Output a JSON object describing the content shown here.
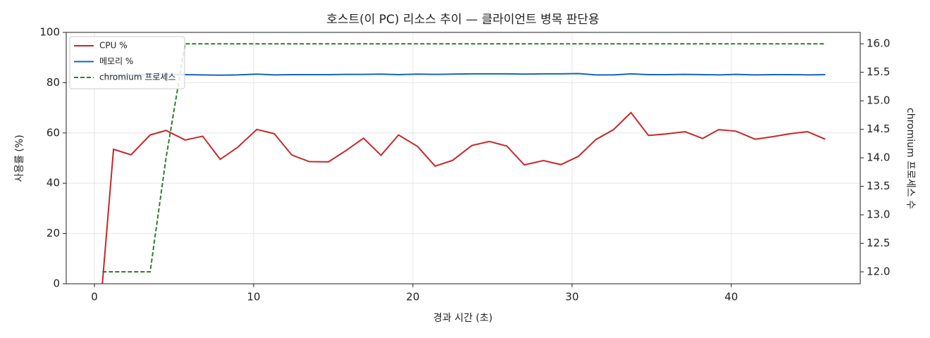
{
  "chart_data": {
    "type": "line",
    "title": "호스트(이 PC) 리소스 추이 — 클라이언트 병목 판단용",
    "x_label": "경과 시간 (초)",
    "y_label": "사용률 (%)",
    "y2_label": "chromium 프로세스 수",
    "x": [
      0.5,
      1.2,
      2.3,
      3.5,
      4.5,
      5.7,
      6.8,
      7.9,
      9.0,
      10.2,
      11.3,
      12.4,
      13.5,
      14.7,
      15.8,
      16.9,
      18.0,
      19.1,
      20.3,
      21.4,
      22.5,
      23.7,
      24.8,
      25.9,
      27.0,
      28.2,
      29.3,
      30.4,
      31.5,
      32.6,
      33.7,
      34.8,
      35.9,
      37.1,
      38.2,
      39.2,
      40.3,
      41.5,
      42.6,
      43.7,
      44.8,
      45.9
    ],
    "series": [
      {
        "name": "CPU %",
        "color": "#c62828",
        "linestyle": "solid",
        "axis": "y",
        "values": [
          0,
          53.5,
          51.3,
          59.2,
          61,
          57.2,
          58.7,
          49.5,
          54.3,
          61.4,
          59.7,
          51.2,
          48.6,
          48.5,
          53,
          57.9,
          51.1,
          59.2,
          54.6,
          46.8,
          49.1,
          55,
          56.6,
          54.8,
          47.3,
          49,
          47.4,
          50.7,
          57.4,
          61.3,
          68.1,
          59,
          59.6,
          60.5,
          57.8,
          61.3,
          60.7,
          57.5,
          58.5,
          59.7,
          60.5,
          57.5
        ]
      },
      {
        "name": "메모리 %",
        "color": "#1565c0",
        "linestyle": "solid",
        "axis": "y",
        "values": [
          82.9,
          83.0,
          83.1,
          83.2,
          83.3,
          83.2,
          83.1,
          83.0,
          83.1,
          83.4,
          83.1,
          83.2,
          83.2,
          83.2,
          83.3,
          83.3,
          83.4,
          83.2,
          83.4,
          83.3,
          83.4,
          83.5,
          83.5,
          83.5,
          83.4,
          83.5,
          83.5,
          83.6,
          83.1,
          83.1,
          83.5,
          83.2,
          83.2,
          83.3,
          83.2,
          83.1,
          83.3,
          83.1,
          83.2,
          83.2,
          83.1,
          83.2
        ]
      },
      {
        "name": "chromium 프로세스",
        "color": "#2e7d32",
        "linestyle": "dashed",
        "axis": "y2",
        "values": [
          12,
          12,
          12,
          12,
          14,
          16,
          16,
          16,
          16,
          16,
          16,
          16,
          16,
          16,
          16,
          16,
          16,
          16,
          16,
          16,
          16,
          16,
          16,
          16,
          16,
          16,
          16,
          16,
          16,
          16,
          16,
          16,
          16,
          16,
          16,
          16,
          16,
          16,
          16,
          16,
          16,
          16
        ]
      }
    ],
    "xlim": [
      -1.77,
      48.1
    ],
    "xticks": [
      0,
      10,
      20,
      30,
      40
    ],
    "ylim": [
      0,
      100
    ],
    "yticks": [
      0,
      20,
      40,
      60,
      80,
      100
    ],
    "y2lim": [
      11.79,
      16.2
    ],
    "y2ticks": [
      {
        "value": 12,
        "label": "12.0"
      },
      {
        "value": 12.5,
        "label": "12.5"
      },
      {
        "value": 13,
        "label": "13.0"
      },
      {
        "value": 13.5,
        "label": "13.5"
      },
      {
        "value": 14,
        "label": "14.0"
      },
      {
        "value": 14.5,
        "label": "14.5"
      },
      {
        "value": 15,
        "label": "15.0"
      },
      {
        "value": 15.5,
        "label": "15.5"
      },
      {
        "value": 16,
        "label": "16.0"
      }
    ],
    "grid": true,
    "legend_position": "upper-left"
  }
}
